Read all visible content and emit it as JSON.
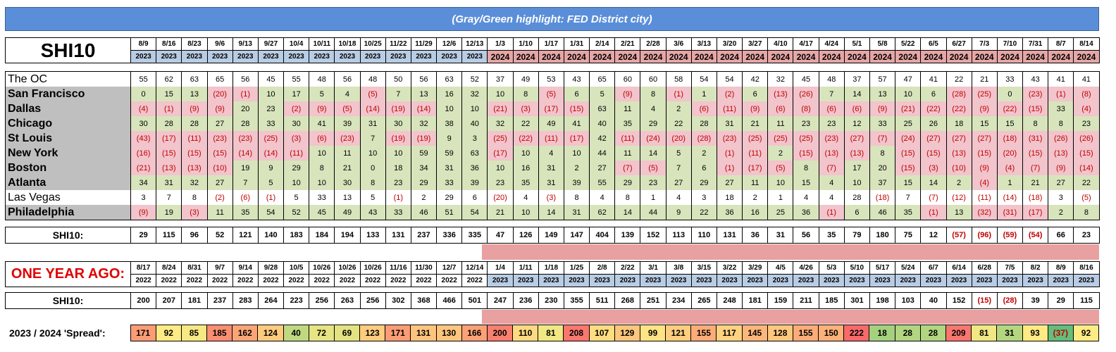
{
  "banner": "(Gray/Green highlight:  FED District city)",
  "table_title": "SHI10",
  "dates": [
    "8/9",
    "8/16",
    "8/23",
    "9/6",
    "9/13",
    "9/27",
    "10/4",
    "10/11",
    "10/18",
    "10/25",
    "11/22",
    "11/29",
    "12/6",
    "12/13",
    "1/3",
    "1/10",
    "1/17",
    "1/31",
    "2/14",
    "2/21",
    "2/28",
    "3/6",
    "3/13",
    "3/20",
    "3/27",
    "4/10",
    "4/17",
    "4/24",
    "5/1",
    "5/8",
    "5/22",
    "6/5",
    "6/27",
    "7/3",
    "7/10",
    "7/31",
    "8/7",
    "8/14"
  ],
  "years": [
    "2023",
    "2023",
    "2023",
    "2023",
    "2023",
    "2023",
    "2023",
    "2023",
    "2023",
    "2023",
    "2023",
    "2023",
    "2023",
    "2023",
    "2024",
    "2024",
    "2024",
    "2024",
    "2024",
    "2024",
    "2024",
    "2024",
    "2024",
    "2024",
    "2024",
    "2024",
    "2024",
    "2024",
    "2024",
    "2024",
    "2024",
    "2024",
    "2024",
    "2024",
    "2024",
    "2024",
    "2024",
    "2024"
  ],
  "cities": [
    {
      "name": "The OC",
      "fed": false,
      "values": [
        "55",
        "62",
        "63",
        "65",
        "56",
        "45",
        "55",
        "48",
        "56",
        "48",
        "50",
        "56",
        "63",
        "52",
        "37",
        "49",
        "53",
        "43",
        "65",
        "60",
        "60",
        "58",
        "54",
        "54",
        "42",
        "32",
        "45",
        "48",
        "37",
        "57",
        "47",
        "41",
        "22",
        "21",
        "33",
        "43",
        "41",
        "41"
      ]
    },
    {
      "name": "San Francisco",
      "fed": true,
      "values": [
        "0",
        "15",
        "13",
        "(20)",
        "(1)",
        "10",
        "17",
        "5",
        "4",
        "(5)",
        "7",
        "13",
        "16",
        "32",
        "10",
        "8",
        "(5)",
        "6",
        "5",
        "(9)",
        "8",
        "(1)",
        "1",
        "(2)",
        "6",
        "(13)",
        "(26)",
        "7",
        "14",
        "13",
        "10",
        "6",
        "(28)",
        "(25)",
        "0",
        "(23)",
        "(1)",
        "(8)"
      ]
    },
    {
      "name": "Dallas",
      "fed": true,
      "values": [
        "(4)",
        "(1)",
        "(9)",
        "(9)",
        "20",
        "23",
        "(2)",
        "(9)",
        "(5)",
        "(14)",
        "(19)",
        "(14)",
        "10",
        "10",
        "(21)",
        "(3)",
        "(17)",
        "(15)",
        "63",
        "11",
        "4",
        "2",
        "(6)",
        "(11)",
        "(9)",
        "(6)",
        "(8)",
        "(6)",
        "(6)",
        "(9)",
        "(21)",
        "(22)",
        "(22)",
        "(9)",
        "(22)",
        "(15)",
        "33",
        "(4)"
      ]
    },
    {
      "name": "Chicago",
      "fed": true,
      "values": [
        "30",
        "28",
        "28",
        "27",
        "28",
        "33",
        "30",
        "41",
        "39",
        "31",
        "30",
        "32",
        "38",
        "40",
        "32",
        "22",
        "49",
        "41",
        "40",
        "35",
        "29",
        "22",
        "28",
        "31",
        "21",
        "11",
        "23",
        "23",
        "12",
        "33",
        "25",
        "26",
        "18",
        "15",
        "15",
        "8",
        "8",
        "23"
      ]
    },
    {
      "name": "St Louis",
      "fed": true,
      "values": [
        "(43)",
        "(17)",
        "(11)",
        "(23)",
        "(23)",
        "(25)",
        "(3)",
        "(6)",
        "(23)",
        "7",
        "(19)",
        "(19)",
        "9",
        "3",
        "(25)",
        "(22)",
        "(11)",
        "(17)",
        "42",
        "(11)",
        "(24)",
        "(20)",
        "(28)",
        "(23)",
        "(25)",
        "(25)",
        "(25)",
        "(23)",
        "(27)",
        "(7)",
        "(24)",
        "(27)",
        "(27)",
        "(27)",
        "(18)",
        "(31)",
        "(26)",
        "(26)"
      ]
    },
    {
      "name": "New York",
      "fed": true,
      "values": [
        "(16)",
        "(15)",
        "(15)",
        "(15)",
        "(14)",
        "(14)",
        "(11)",
        "10",
        "11",
        "10",
        "10",
        "59",
        "59",
        "63",
        "(17)",
        "10",
        "4",
        "10",
        "44",
        "11",
        "14",
        "5",
        "2",
        "(1)",
        "(11)",
        "2",
        "(15)",
        "(13)",
        "(13)",
        "8",
        "(15)",
        "(15)",
        "(13)",
        "(15)",
        "(20)",
        "(15)",
        "(13)",
        "(15)"
      ]
    },
    {
      "name": "Boston",
      "fed": true,
      "values": [
        "(21)",
        "(13)",
        "(13)",
        "(10)",
        "19",
        "9",
        "29",
        "8",
        "21",
        "0",
        "18",
        "34",
        "31",
        "36",
        "10",
        "16",
        "31",
        "2",
        "27",
        "(7)",
        "(5)",
        "7",
        "6",
        "(1)",
        "(17)",
        "(5)",
        "8",
        "(7)",
        "17",
        "20",
        "(15)",
        "(3)",
        "(10)",
        "(9)",
        "(4)",
        "(7)",
        "(9)",
        "(14)"
      ]
    },
    {
      "name": "Atlanta",
      "fed": true,
      "values": [
        "34",
        "31",
        "32",
        "27",
        "7",
        "5",
        "10",
        "10",
        "30",
        "8",
        "23",
        "29",
        "33",
        "39",
        "23",
        "35",
        "31",
        "39",
        "55",
        "29",
        "23",
        "27",
        "29",
        "27",
        "11",
        "10",
        "15",
        "4",
        "10",
        "37",
        "15",
        "14",
        "2",
        "(4)",
        "1",
        "21",
        "27",
        "22"
      ]
    },
    {
      "name": "Las Vegas",
      "fed": false,
      "values": [
        "3",
        "7",
        "8",
        "(2)",
        "(6)",
        "(1)",
        "5",
        "33",
        "13",
        "5",
        "(1)",
        "2",
        "29",
        "6",
        "(20)",
        "4",
        "(3)",
        "8",
        "4",
        "8",
        "1",
        "4",
        "3",
        "18",
        "2",
        "1",
        "4",
        "4",
        "28",
        "(18)",
        "7",
        "(7)",
        "(12)",
        "(11)",
        "(14)",
        "(18)",
        "3",
        "(5)"
      ]
    },
    {
      "name": "Philadelphia",
      "fed": true,
      "values": [
        "(9)",
        "19",
        "(3)",
        "11",
        "35",
        "54",
        "52",
        "45",
        "49",
        "43",
        "33",
        "46",
        "51",
        "54",
        "21",
        "10",
        "14",
        "31",
        "62",
        "14",
        "44",
        "9",
        "22",
        "36",
        "16",
        "25",
        "36",
        "(1)",
        "6",
        "46",
        "35",
        "(1)",
        "13",
        "(32)",
        "(31)",
        "(17)",
        "2",
        "8"
      ]
    }
  ],
  "total_label": "SHI10:",
  "totals": [
    "29",
    "115",
    "96",
    "52",
    "121",
    "140",
    "183",
    "184",
    "194",
    "133",
    "131",
    "237",
    "336",
    "335",
    "47",
    "126",
    "149",
    "147",
    "404",
    "139",
    "152",
    "113",
    "110",
    "131",
    "36",
    "31",
    "56",
    "35",
    "79",
    "180",
    "75",
    "12",
    "(57)",
    "(96)",
    "(59)",
    "(54)",
    "66",
    "23"
  ],
  "ago_label": "ONE YEAR AGO:",
  "ago_dates": [
    "8/17",
    "8/24",
    "8/31",
    "9/7",
    "9/14",
    "9/28",
    "10/5",
    "10/26",
    "10/26",
    "10/26",
    "11/16",
    "11/30",
    "12/7",
    "12/14",
    "1/4",
    "1/11",
    "1/18",
    "1/25",
    "2/8",
    "2/22",
    "3/1",
    "3/8",
    "3/15",
    "3/22",
    "3/29",
    "4/5",
    "4/26",
    "5/3",
    "5/10",
    "5/17",
    "5/24",
    "6/7",
    "6/14",
    "6/28",
    "7/5",
    "8/2",
    "8/9",
    "8/16"
  ],
  "ago_years": [
    "2022",
    "2022",
    "2022",
    "2022",
    "2022",
    "2022",
    "2022",
    "2022",
    "2022",
    "2022",
    "2022",
    "2022",
    "2022",
    "2022",
    "2023",
    "2023",
    "2023",
    "2023",
    "2023",
    "2023",
    "2023",
    "2023",
    "2023",
    "2023",
    "2023",
    "2023",
    "2023",
    "2023",
    "2023",
    "2023",
    "2023",
    "2023",
    "2023",
    "2023",
    "2023",
    "2023",
    "2023",
    "2023"
  ],
  "ago_total_label": "SHI10:",
  "ago_totals": [
    "200",
    "207",
    "181",
    "237",
    "283",
    "264",
    "223",
    "256",
    "263",
    "256",
    "302",
    "368",
    "466",
    "501",
    "247",
    "236",
    "230",
    "355",
    "511",
    "268",
    "251",
    "234",
    "265",
    "248",
    "181",
    "159",
    "211",
    "185",
    "301",
    "198",
    "103",
    "40",
    "152",
    "(15)",
    "(28)",
    "39",
    "29",
    "115"
  ],
  "spread_label": "2023 / 2024 'Spread':",
  "spread": [
    "171",
    "92",
    "85",
    "185",
    "162",
    "124",
    "40",
    "72",
    "69",
    "123",
    "171",
    "131",
    "130",
    "166",
    "200",
    "110",
    "81",
    "208",
    "107",
    "129",
    "99",
    "121",
    "155",
    "117",
    "145",
    "128",
    "155",
    "150",
    "222",
    "18",
    "28",
    "28",
    "209",
    "81",
    "31",
    "93",
    "(37)",
    "92"
  ],
  "colors": {
    "banner": "#5a8ed8",
    "fed_green": "#d8e4bc",
    "neg_pink": "#f2c4cc",
    "fed_gray": "#bfbfbf",
    "y2023": "#b8cce4",
    "y2024": "#e6a6a6"
  }
}
